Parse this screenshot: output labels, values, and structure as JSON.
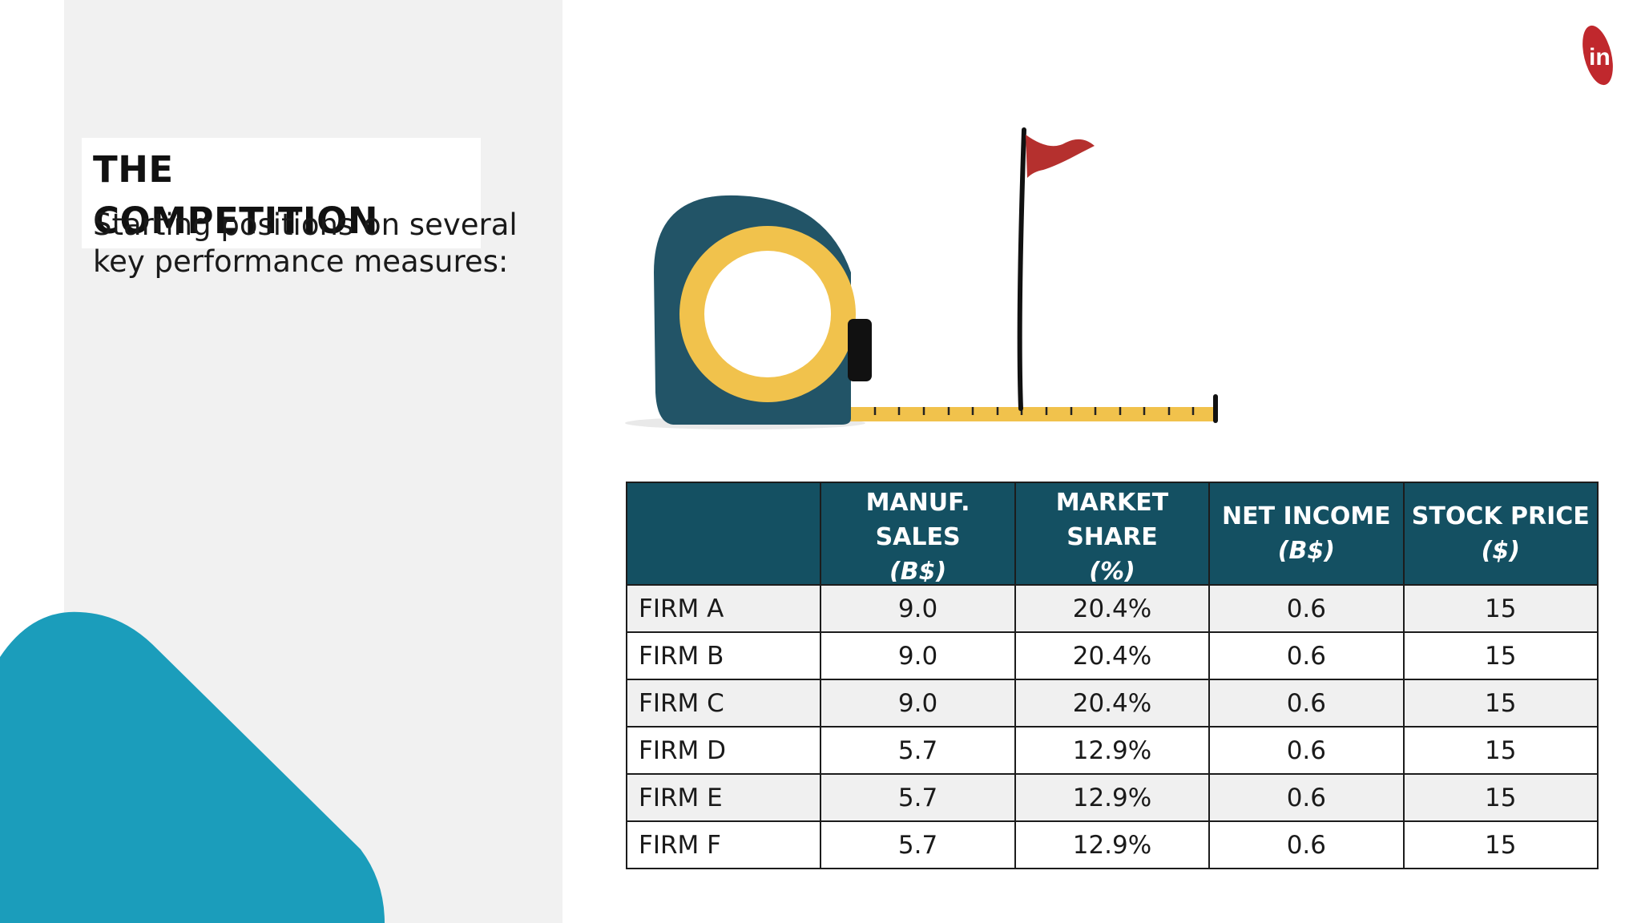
{
  "slide": {
    "title": "THE COMPETITION",
    "subtitle": "Starting positions on several key performance measures:"
  },
  "colors": {
    "panel_gray": "#f1f1f1",
    "teal_shape": "#1b9dbb",
    "header_teal": "#145062",
    "tape_body": "#225467",
    "tape_yellow": "#f1c24c",
    "flag_red": "#b5302e",
    "logo_red": "#c0282d"
  },
  "logo_text": "in",
  "table": {
    "headers": [
      {
        "label": "",
        "unit": ""
      },
      {
        "label": "MANUF. SALES",
        "unit": "(B$)"
      },
      {
        "label": "MARKET SHARE",
        "unit": "(%)"
      },
      {
        "label": "NET INCOME",
        "unit": "(B$)"
      },
      {
        "label": "STOCK PRICE",
        "unit": "($)"
      }
    ],
    "rows": [
      {
        "firm": "FIRM A",
        "sales": "9.0",
        "share": "20.4%",
        "income": "0.6",
        "price": "15"
      },
      {
        "firm": "FIRM B",
        "sales": "9.0",
        "share": "20.4%",
        "income": "0.6",
        "price": "15"
      },
      {
        "firm": "FIRM C",
        "sales": "9.0",
        "share": "20.4%",
        "income": "0.6",
        "price": "15"
      },
      {
        "firm": "FIRM D",
        "sales": "5.7",
        "share": "12.9%",
        "income": "0.6",
        "price": "15"
      },
      {
        "firm": "FIRM E",
        "sales": "5.7",
        "share": "12.9%",
        "income": "0.6",
        "price": "15"
      },
      {
        "firm": "FIRM F",
        "sales": "5.7",
        "share": "12.9%",
        "income": "0.6",
        "price": "15"
      }
    ]
  }
}
